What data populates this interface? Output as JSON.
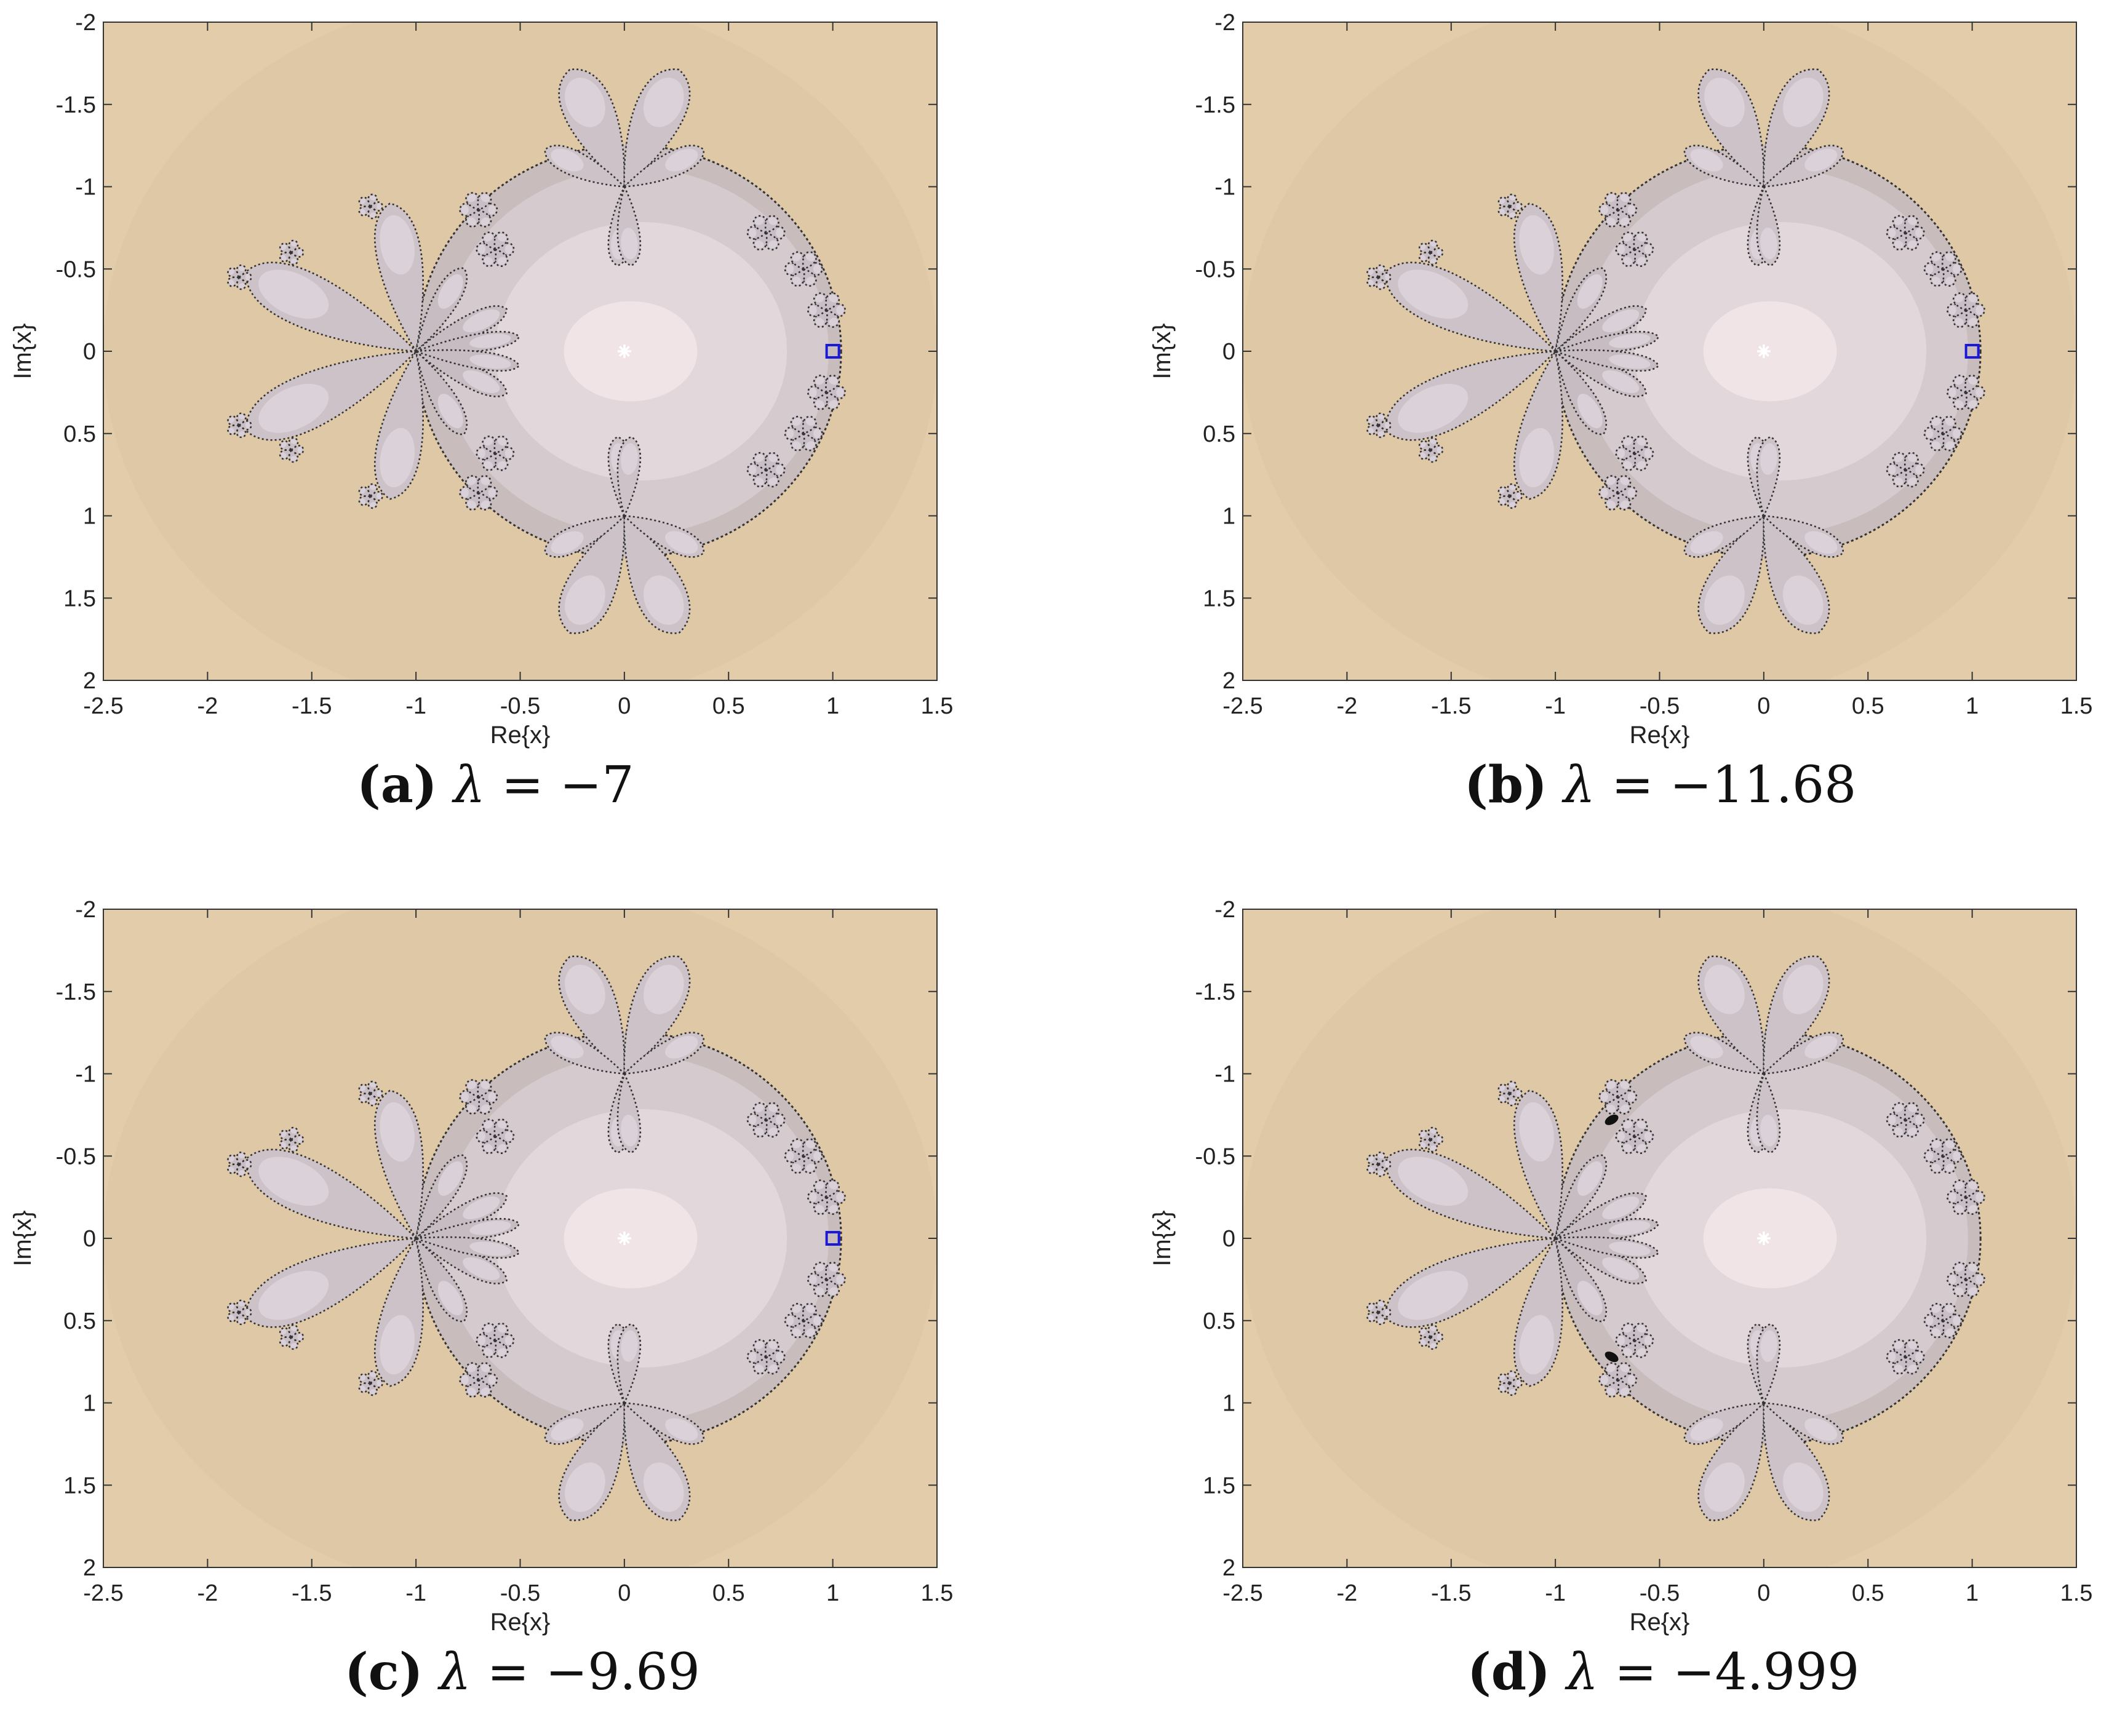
{
  "panels": [
    {
      "tag": "(a)",
      "symbol": "λ",
      "equals": "=",
      "value_text": "−7",
      "lambda": -7,
      "fixed_point_marker": {
        "x": 0,
        "y": 0,
        "shape": "asterisk"
      },
      "square_marker": {
        "x": 1,
        "y": 0,
        "shape": "square"
      },
      "black_blobs": []
    },
    {
      "tag": "(b)",
      "symbol": "λ",
      "equals": "=",
      "value_text": "−11.68",
      "lambda": -11.68,
      "fixed_point_marker": {
        "x": 0,
        "y": 0,
        "shape": "asterisk"
      },
      "square_marker": {
        "x": 1,
        "y": 0,
        "shape": "square"
      },
      "black_blobs": []
    },
    {
      "tag": "(c)",
      "symbol": "λ",
      "equals": "=",
      "value_text": "−9.69",
      "lambda": -9.69,
      "fixed_point_marker": {
        "x": 0,
        "y": 0,
        "shape": "asterisk"
      },
      "square_marker": {
        "x": 1,
        "y": 0,
        "shape": "square"
      },
      "black_blobs": []
    },
    {
      "tag": "(d)",
      "symbol": "λ",
      "equals": "=",
      "value_text": "−4.999",
      "lambda": -4.999,
      "fixed_point_marker": {
        "x": 0,
        "y": 0,
        "shape": "asterisk"
      },
      "square_marker": null,
      "black_blobs": [
        {
          "x": -0.73,
          "y": -0.72
        },
        {
          "x": -0.73,
          "y": 0.72
        }
      ]
    }
  ],
  "chart_data": {
    "type": "heatmap",
    "xlabel": "Re{x}",
    "ylabel": "Im{x}",
    "xlim": [
      -2.5,
      1.5
    ],
    "ylim": [
      -2,
      2
    ],
    "y_axis_reversed": true,
    "xticks": [
      -2.5,
      -2,
      -1.5,
      -1,
      -0.5,
      0,
      0.5,
      1,
      1.5
    ],
    "xtick_labels": [
      "-2.5",
      "-2",
      "-1.5",
      "-1",
      "-0.5",
      "0",
      "0.5",
      "1",
      "1.5"
    ],
    "yticks": [
      -2,
      -1.5,
      -1,
      -0.5,
      0,
      0.5,
      1,
      1.5,
      2
    ],
    "ytick_labels": [
      "-2",
      "-1.5",
      "-1",
      "-0.5",
      "0",
      "0.5",
      "1",
      "1.5",
      "2"
    ],
    "grid": false,
    "colors": {
      "background": "#e2ccaa",
      "basin_outer": "#c8bcbc",
      "basin_mid": "#d5cbcf",
      "basin_inner": "#e2d8dc",
      "basin_center": "#f0e4e6",
      "petal_fill": "#ccc2c8",
      "petal_highlight": "#ddd4da",
      "boundary": "#333333",
      "square_marker": "#1a1ad6",
      "asterisk_marker": "#ffffff"
    }
  }
}
